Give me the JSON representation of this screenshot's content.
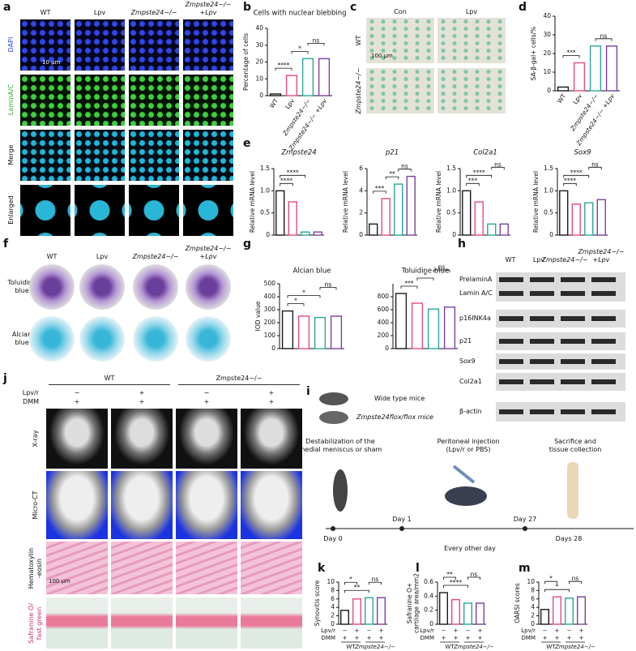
{
  "figure": {
    "letters": [
      "a",
      "b",
      "c",
      "d",
      "e",
      "f",
      "g",
      "h",
      "i",
      "j",
      "k",
      "l",
      "m"
    ],
    "a": {
      "columns": [
        "WT",
        "Lpv",
        "Zmpste24−/−",
        "Zmpste24−/−\n+Lpv"
      ],
      "rows": [
        "DAPI",
        "LaminA/C",
        "Merge",
        "Enlarged"
      ],
      "scale": "10 μm"
    },
    "c": {
      "columns": [
        "Con",
        "Lpv"
      ],
      "rows": [
        "WT",
        "Zmpste24−/−"
      ],
      "scale": "100 μm"
    },
    "f": {
      "columns": [
        "WT",
        "Lpv",
        "Zmpste24−/−",
        "Zmpste24−/−\n+Lpv"
      ],
      "rows": [
        "Toluidine\nblue",
        "Alcian\nblue"
      ]
    },
    "h": {
      "columns": [
        "WT",
        "Lpv",
        "Zmpste24−/−",
        "Zmpste24−/−\n+Lpv"
      ],
      "rows": [
        "PrelaminA",
        "Lamin A/C",
        "p16INK4a",
        "p21",
        "Sox9",
        "Col2a1",
        "β-actin"
      ]
    },
    "i": {
      "mice": [
        "Wide type mice",
        "Zmpste24flox/flox mice"
      ],
      "steps": [
        "Destabilization of the\nmedial meniscus or sham",
        "Peritoneal injection\n(Lpv/r or PBS)",
        "Sacrifice and\ntissue collection"
      ],
      "timeline": [
        "Day 0",
        "Day 1",
        "Day 27",
        "Days 28"
      ],
      "interval": "Every other day"
    },
    "j": {
      "groups": [
        "WT",
        "Zmpste24−/−"
      ],
      "conditions": [
        {
          "name": "Lpv/r",
          "values": [
            "−",
            "+",
            "−",
            "+"
          ]
        },
        {
          "name": "DMM",
          "values": [
            "+",
            "+",
            "+",
            "+"
          ]
        }
      ],
      "rows": [
        "X-ray",
        "Micro-CT",
        "Hematoxylin\n-eosin",
        "Safranine O/\nfast green"
      ],
      "scale": "100 μm"
    }
  },
  "chart_data": [
    {
      "type": "bar",
      "title": "Cells with nuclear blebbing",
      "ylabel": "Percentage of cells",
      "categories": [
        "WT",
        "Lpv",
        "Zmpste24−/−",
        "Zmpste24−/− +Lpv"
      ],
      "values": [
        1,
        12,
        22,
        22
      ],
      "colors": [
        "#1a1a1a",
        "#e84a7f",
        "#2aa79b",
        "#7b3fa3"
      ],
      "ylim": [
        0,
        40
      ],
      "yticks": [
        0,
        10,
        20,
        30,
        40
      ],
      "annotations": [
        "****",
        "*",
        "ns"
      ]
    },
    {
      "type": "bar",
      "ylabel": "SA-β-gal+ cells/%",
      "categories": [
        "WT",
        "Lpv",
        "Zmpste24−/−",
        "Zmpste24−/− +Lpv"
      ],
      "values": [
        2,
        15,
        24,
        24
      ],
      "colors": [
        "#1a1a1a",
        "#e84a7f",
        "#2aa79b",
        "#7b3fa3"
      ],
      "ylim": [
        0,
        40
      ],
      "yticks": [
        0,
        10,
        20,
        30,
        40
      ],
      "annotations": [
        "***",
        "ns"
      ]
    },
    {
      "type": "bar",
      "title": "Zmpste24",
      "ylabel": "Relative mRNA level",
      "categories": [
        null,
        null,
        null,
        null
      ],
      "values": [
        1.0,
        0.75,
        0.07,
        0.07
      ],
      "colors": [
        "#1a1a1a",
        "#e84a7f",
        "#2aa79b",
        "#7b3fa3"
      ],
      "ylim": [
        0,
        1.5
      ],
      "yticks": [
        0,
        0.5,
        {
          "value": 1,
          "label": "1.0"
        },
        1.5
      ],
      "annotations": [
        "****",
        "****"
      ]
    },
    {
      "type": "bar",
      "title": "p21",
      "ylabel": "Relative mRNA level",
      "categories": [
        null,
        null,
        null,
        null
      ],
      "values": [
        1.0,
        3.3,
        4.6,
        5.3
      ],
      "colors": [
        "#1a1a1a",
        "#e84a7f",
        "#2aa79b",
        "#7b3fa3"
      ],
      "ylim": [
        0,
        6
      ],
      "yticks": [
        0,
        2,
        4,
        6
      ],
      "annotations": [
        "***",
        "**",
        "ns"
      ]
    },
    {
      "type": "bar",
      "title": "Col2a1",
      "ylabel": "Relative mRNA level",
      "categories": [
        null,
        null,
        null,
        null
      ],
      "values": [
        1.0,
        0.75,
        0.25,
        0.25
      ],
      "colors": [
        "#1a1a1a",
        "#e84a7f",
        "#2aa79b",
        "#7b3fa3"
      ],
      "ylim": [
        0,
        1.5
      ],
      "yticks": [
        0,
        0.5,
        {
          "value": 1,
          "label": "1.0"
        },
        1.5
      ],
      "annotations": [
        "***",
        "****",
        "ns"
      ]
    },
    {
      "type": "bar",
      "title": "Sox9",
      "ylabel": "Relative mRNA level",
      "categories": [
        null,
        null,
        null,
        null
      ],
      "values": [
        1.0,
        0.7,
        0.73,
        0.8
      ],
      "colors": [
        "#1a1a1a",
        "#e84a7f",
        "#2aa79b",
        "#7b3fa3"
      ],
      "ylim": [
        0,
        1.5
      ],
      "yticks": [
        0,
        0.5,
        {
          "value": 1,
          "label": "1.0"
        },
        1.5
      ],
      "annotations": [
        "****",
        "****",
        "ns"
      ]
    },
    {
      "type": "bar",
      "title": "Alcian blue",
      "ylabel": "IOD value",
      "categories": [
        null,
        null,
        null,
        null
      ],
      "values": [
        290,
        250,
        240,
        250
      ],
      "colors": [
        "#1a1a1a",
        "#e84a7f",
        "#2aa79b",
        "#7b3fa3"
      ],
      "ylim": [
        0,
        500
      ],
      "yticks": [
        0,
        100,
        200,
        300,
        400,
        500
      ],
      "annotations": [
        "*",
        "*",
        "ns"
      ]
    },
    {
      "type": "bar",
      "title": "Toluidine blue",
      "categories": [
        null,
        null,
        null,
        null
      ],
      "values": [
        850,
        700,
        610,
        640
      ],
      "colors": [
        "#1a1a1a",
        "#e84a7f",
        "#2aa79b",
        "#7b3fa3"
      ],
      "ylim": [
        0,
        1000
      ],
      "yticks": [
        0,
        200,
        400,
        600,
        800
      ],
      "annotations": [
        "***",
        "*",
        "ns"
      ]
    },
    {
      "type": "bar",
      "ylabel": "Synovitis score",
      "categories": [
        null,
        null,
        null,
        null
      ],
      "values": [
        3.3,
        6.0,
        6.3,
        6.3
      ],
      "colors": [
        "#1a1a1a",
        "#e84a7f",
        "#2aa79b",
        "#7b3fa3"
      ],
      "ylim": [
        0,
        10
      ],
      "yticks": [
        0,
        2,
        4,
        6,
        8,
        10
      ],
      "annotations": [
        "**",
        "*",
        "ns"
      ],
      "conditions": [
        {
          "name": "Lpv/r",
          "values": [
            "−",
            "+",
            "−",
            "+"
          ]
        },
        {
          "name": "DMM",
          "values": [
            "+",
            "+",
            "+",
            "+"
          ]
        }
      ],
      "groups": [
        "WT",
        "Zmpste24−/−"
      ]
    },
    {
      "type": "bar",
      "ylabel": "Safranine O+\ncartilage area/mm2",
      "categories": [
        null,
        null,
        null,
        null
      ],
      "values": [
        0.45,
        0.35,
        0.3,
        0.3
      ],
      "colors": [
        "#1a1a1a",
        "#e84a7f",
        "#2aa79b",
        "#7b3fa3"
      ],
      "ylim": [
        0,
        0.6
      ],
      "yticks": [
        0,
        0.2,
        0.4,
        0.6
      ],
      "annotations": [
        "****",
        "**",
        "ns"
      ],
      "conditions": [
        {
          "name": "Lpv/r",
          "values": [
            "−",
            "+",
            "−",
            "+"
          ]
        },
        {
          "name": "DMM",
          "values": [
            "+",
            "+",
            "+",
            "+"
          ]
        }
      ],
      "groups": [
        "WT",
        "Zmpste24−/−"
      ]
    },
    {
      "type": "bar",
      "ylabel": "OARSI scores",
      "categories": [
        null,
        null,
        null,
        null
      ],
      "values": [
        3.5,
        6.5,
        6.2,
        6.5
      ],
      "colors": [
        "#1a1a1a",
        "#e84a7f",
        "#2aa79b",
        "#7b3fa3"
      ],
      "ylim": [
        0,
        10
      ],
      "yticks": [
        0,
        2,
        4,
        6,
        8,
        10
      ],
      "annotations": [
        "*",
        "*",
        "ns"
      ],
      "conditions": [
        {
          "name": "Lpv/r",
          "values": [
            "−",
            "+",
            "−",
            "+"
          ]
        },
        {
          "name": "DMM",
          "values": [
            "+",
            "+",
            "+",
            "+"
          ]
        }
      ],
      "groups": [
        "WT",
        "Zmpste24−/−"
      ]
    }
  ]
}
